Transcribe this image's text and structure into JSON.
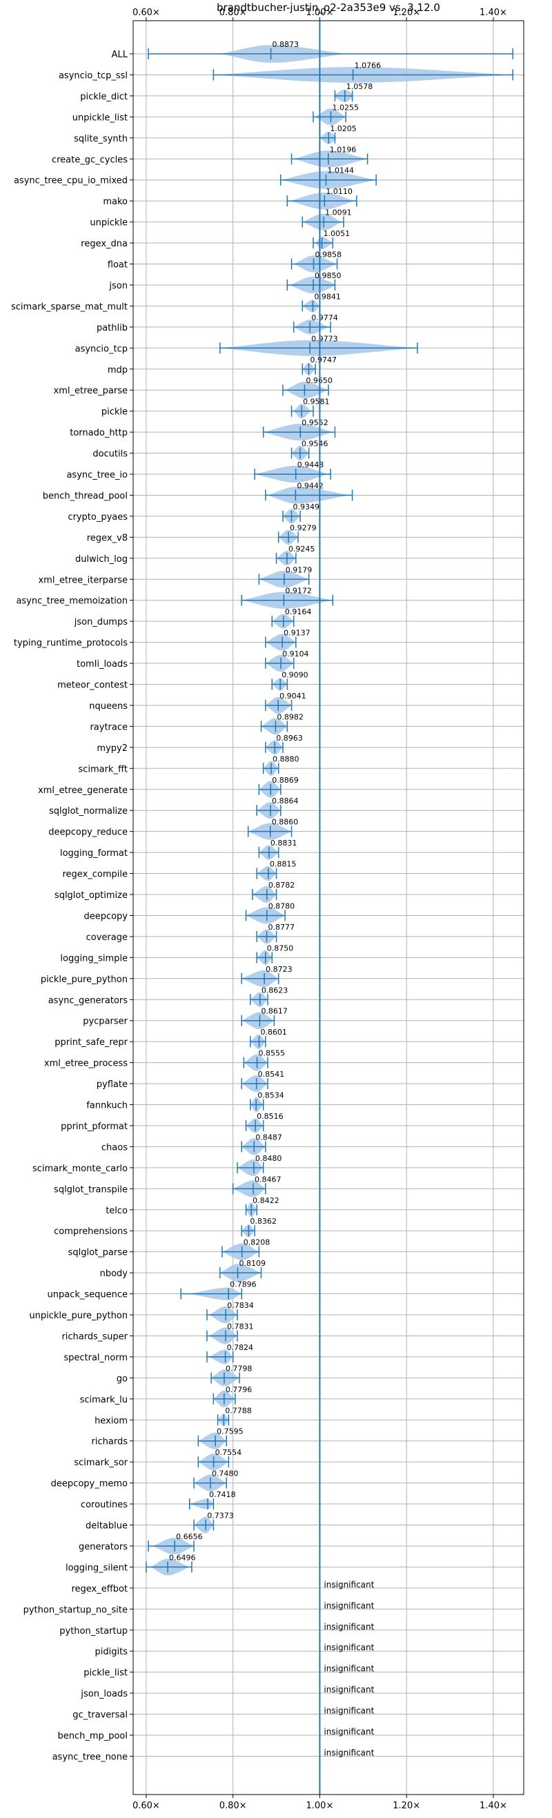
{
  "chart_data": {
    "type": "violin",
    "title": "brandtbucher-justin_o2-2a353e9 vs. 3.12.0",
    "xlim": [
      0.57,
      1.47
    ],
    "xticks": [
      0.6,
      0.8,
      1.0,
      1.2,
      1.4
    ],
    "xtick_labels": [
      "0.60×",
      "0.80×",
      "1.00×",
      "1.20×",
      "1.40×"
    ],
    "reference_line": 1.0,
    "grid": true,
    "colors": {
      "violin": "#a7c7e7",
      "errorbar": "#1f77b4",
      "grid": "#b0b0b0"
    },
    "insignificant_label": "insignificant",
    "benchmarks": [
      {
        "name": "ALL",
        "value": 0.8873,
        "label": "0.8873",
        "lo": 0.605,
        "hi": 1.445,
        "vmin": 0.77,
        "vmax": 1.06,
        "width": 0.85
      },
      {
        "name": "asyncio_tcp_ssl",
        "value": 1.0766,
        "label": "1.0766",
        "lo": 0.755,
        "hi": 1.445,
        "vmin": 0.755,
        "vmax": 1.445,
        "width": 0.75
      },
      {
        "name": "pickle_dict",
        "value": 1.0578,
        "label": "1.0578",
        "lo": 1.035,
        "hi": 1.075,
        "vmin": 1.03,
        "vmax": 1.08,
        "width": 0.6
      },
      {
        "name": "unpickle_list",
        "value": 1.0255,
        "label": "1.0255",
        "lo": 0.985,
        "hi": 1.06,
        "vmin": 0.99,
        "vmax": 1.06,
        "width": 0.8
      },
      {
        "name": "sqlite_synth",
        "value": 1.0205,
        "label": "1.0205",
        "lo": 1.0,
        "hi": 1.035,
        "vmin": 1.0,
        "vmax": 1.04,
        "width": 0.6
      },
      {
        "name": "create_gc_cycles",
        "value": 1.0196,
        "label": "1.0196",
        "lo": 0.935,
        "hi": 1.11,
        "vmin": 0.94,
        "vmax": 1.11,
        "width": 0.8
      },
      {
        "name": "async_tree_cpu_io_mixed",
        "value": 1.0144,
        "label": "1.0144",
        "lo": 0.91,
        "hi": 1.13,
        "vmin": 0.91,
        "vmax": 1.13,
        "width": 0.85
      },
      {
        "name": "mako",
        "value": 1.011,
        "label": "1.0110",
        "lo": 0.925,
        "hi": 1.085,
        "vmin": 0.93,
        "vmax": 1.08,
        "width": 0.8
      },
      {
        "name": "unpickle",
        "value": 1.0091,
        "label": "1.0091",
        "lo": 0.96,
        "hi": 1.055,
        "vmin": 0.96,
        "vmax": 1.05,
        "width": 0.8
      },
      {
        "name": "regex_dna",
        "value": 1.0051,
        "label": "1.0051",
        "lo": 0.985,
        "hi": 1.03,
        "vmin": 0.99,
        "vmax": 1.03,
        "width": 0.6
      },
      {
        "name": "float",
        "value": 0.9858,
        "label": "0.9858",
        "lo": 0.935,
        "hi": 1.04,
        "vmin": 0.94,
        "vmax": 1.04,
        "width": 0.8
      },
      {
        "name": "json",
        "value": 0.985,
        "label": "0.9850",
        "lo": 0.925,
        "hi": 1.035,
        "vmin": 0.93,
        "vmax": 1.04,
        "width": 0.8
      },
      {
        "name": "scimark_sparse_mat_mult",
        "value": 0.9841,
        "label": "0.9841",
        "lo": 0.96,
        "hi": 1.0,
        "vmin": 0.96,
        "vmax": 1.0,
        "width": 0.6
      },
      {
        "name": "pathlib",
        "value": 0.9774,
        "label": "0.9774",
        "lo": 0.94,
        "hi": 1.025,
        "vmin": 0.94,
        "vmax": 1.02,
        "width": 0.7
      },
      {
        "name": "asyncio_tcp",
        "value": 0.9773,
        "label": "0.9773",
        "lo": 0.77,
        "hi": 1.225,
        "vmin": 0.77,
        "vmax": 1.225,
        "width": 0.75
      },
      {
        "name": "mdp",
        "value": 0.9747,
        "label": "0.9747",
        "lo": 0.96,
        "hi": 0.99,
        "vmin": 0.96,
        "vmax": 0.99,
        "width": 0.6
      },
      {
        "name": "xml_etree_parse",
        "value": 0.965,
        "label": "0.9650",
        "lo": 0.915,
        "hi": 1.02,
        "vmin": 0.92,
        "vmax": 1.02,
        "width": 0.8
      },
      {
        "name": "pickle",
        "value": 0.9581,
        "label": "0.9581",
        "lo": 0.935,
        "hi": 0.985,
        "vmin": 0.94,
        "vmax": 0.98,
        "width": 0.7
      },
      {
        "name": "tornado_http",
        "value": 0.9552,
        "label": "0.9552",
        "lo": 0.87,
        "hi": 1.035,
        "vmin": 0.87,
        "vmax": 1.03,
        "width": 0.8
      },
      {
        "name": "docutils",
        "value": 0.9546,
        "label": "0.9546",
        "lo": 0.935,
        "hi": 0.975,
        "vmin": 0.935,
        "vmax": 0.975,
        "width": 0.7
      },
      {
        "name": "async_tree_io",
        "value": 0.9448,
        "label": "0.9448",
        "lo": 0.85,
        "hi": 1.025,
        "vmin": 0.85,
        "vmax": 1.02,
        "width": 0.8
      },
      {
        "name": "bench_thread_pool",
        "value": 0.9442,
        "label": "0.9442",
        "lo": 0.875,
        "hi": 1.075,
        "vmin": 0.88,
        "vmax": 1.07,
        "width": 0.8
      },
      {
        "name": "crypto_pyaes",
        "value": 0.9349,
        "label": "0.9349",
        "lo": 0.915,
        "hi": 0.955,
        "vmin": 0.915,
        "vmax": 0.955,
        "width": 0.7
      },
      {
        "name": "regex_v8",
        "value": 0.9279,
        "label": "0.9279",
        "lo": 0.905,
        "hi": 0.95,
        "vmin": 0.905,
        "vmax": 0.95,
        "width": 0.7
      },
      {
        "name": "dulwich_log",
        "value": 0.9245,
        "label": "0.9245",
        "lo": 0.9,
        "hi": 0.945,
        "vmin": 0.9,
        "vmax": 0.945,
        "width": 0.7
      },
      {
        "name": "xml_etree_iterparse",
        "value": 0.9179,
        "label": "0.9179",
        "lo": 0.86,
        "hi": 0.975,
        "vmin": 0.86,
        "vmax": 0.975,
        "width": 0.8
      },
      {
        "name": "async_tree_memoization",
        "value": 0.9172,
        "label": "0.9172",
        "lo": 0.82,
        "hi": 1.03,
        "vmin": 0.82,
        "vmax": 1.03,
        "width": 0.8
      },
      {
        "name": "json_dumps",
        "value": 0.9164,
        "label": "0.9164",
        "lo": 0.89,
        "hi": 0.94,
        "vmin": 0.89,
        "vmax": 0.94,
        "width": 0.7
      },
      {
        "name": "typing_runtime_protocols",
        "value": 0.9137,
        "label": "0.9137",
        "lo": 0.875,
        "hi": 0.945,
        "vmin": 0.875,
        "vmax": 0.945,
        "width": 0.8
      },
      {
        "name": "tomli_loads",
        "value": 0.9104,
        "label": "0.9104",
        "lo": 0.875,
        "hi": 0.94,
        "vmin": 0.875,
        "vmax": 0.94,
        "width": 0.8
      },
      {
        "name": "meteor_contest",
        "value": 0.909,
        "label": "0.9090",
        "lo": 0.89,
        "hi": 0.925,
        "vmin": 0.89,
        "vmax": 0.925,
        "width": 0.6
      },
      {
        "name": "nqueens",
        "value": 0.9041,
        "label": "0.9041",
        "lo": 0.875,
        "hi": 0.935,
        "vmin": 0.875,
        "vmax": 0.935,
        "width": 0.8
      },
      {
        "name": "raytrace",
        "value": 0.8982,
        "label": "0.8982",
        "lo": 0.865,
        "hi": 0.925,
        "vmin": 0.865,
        "vmax": 0.925,
        "width": 0.8
      },
      {
        "name": "mypy2",
        "value": 0.8963,
        "label": "0.8963",
        "lo": 0.875,
        "hi": 0.915,
        "vmin": 0.875,
        "vmax": 0.915,
        "width": 0.7
      },
      {
        "name": "scimark_fft",
        "value": 0.888,
        "label": "0.8880",
        "lo": 0.87,
        "hi": 0.905,
        "vmin": 0.87,
        "vmax": 0.905,
        "width": 0.7
      },
      {
        "name": "xml_etree_generate",
        "value": 0.8869,
        "label": "0.8869",
        "lo": 0.86,
        "hi": 0.91,
        "vmin": 0.86,
        "vmax": 0.91,
        "width": 0.8
      },
      {
        "name": "sqlglot_normalize",
        "value": 0.8864,
        "label": "0.8864",
        "lo": 0.855,
        "hi": 0.91,
        "vmin": 0.855,
        "vmax": 0.91,
        "width": 0.8
      },
      {
        "name": "deepcopy_reduce",
        "value": 0.886,
        "label": "0.8860",
        "lo": 0.835,
        "hi": 0.935,
        "vmin": 0.835,
        "vmax": 0.935,
        "width": 0.8
      },
      {
        "name": "logging_format",
        "value": 0.8831,
        "label": "0.8831",
        "lo": 0.86,
        "hi": 0.905,
        "vmin": 0.86,
        "vmax": 0.905,
        "width": 0.7
      },
      {
        "name": "regex_compile",
        "value": 0.8815,
        "label": "0.8815",
        "lo": 0.855,
        "hi": 0.9,
        "vmin": 0.855,
        "vmax": 0.9,
        "width": 0.7
      },
      {
        "name": "sqlglot_optimize",
        "value": 0.8782,
        "label": "0.8782",
        "lo": 0.845,
        "hi": 0.9,
        "vmin": 0.845,
        "vmax": 0.9,
        "width": 0.8
      },
      {
        "name": "deepcopy",
        "value": 0.878,
        "label": "0.8780",
        "lo": 0.83,
        "hi": 0.92,
        "vmin": 0.83,
        "vmax": 0.92,
        "width": 0.8
      },
      {
        "name": "coverage",
        "value": 0.8777,
        "label": "0.8777",
        "lo": 0.855,
        "hi": 0.9,
        "vmin": 0.855,
        "vmax": 0.9,
        "width": 0.7
      },
      {
        "name": "logging_simple",
        "value": 0.875,
        "label": "0.8750",
        "lo": 0.855,
        "hi": 0.89,
        "vmin": 0.855,
        "vmax": 0.89,
        "width": 0.7
      },
      {
        "name": "pickle_pure_python",
        "value": 0.8723,
        "label": "0.8723",
        "lo": 0.82,
        "hi": 0.905,
        "vmin": 0.82,
        "vmax": 0.905,
        "width": 0.8
      },
      {
        "name": "async_generators",
        "value": 0.8623,
        "label": "0.8623",
        "lo": 0.84,
        "hi": 0.88,
        "vmin": 0.84,
        "vmax": 0.88,
        "width": 0.7
      },
      {
        "name": "pycparser",
        "value": 0.8617,
        "label": "0.8617",
        "lo": 0.82,
        "hi": 0.895,
        "vmin": 0.82,
        "vmax": 0.895,
        "width": 0.8
      },
      {
        "name": "pprint_safe_repr",
        "value": 0.8601,
        "label": "0.8601",
        "lo": 0.84,
        "hi": 0.875,
        "vmin": 0.84,
        "vmax": 0.875,
        "width": 0.7
      },
      {
        "name": "xml_etree_process",
        "value": 0.8555,
        "label": "0.8555",
        "lo": 0.825,
        "hi": 0.88,
        "vmin": 0.825,
        "vmax": 0.88,
        "width": 0.8
      },
      {
        "name": "pyflate",
        "value": 0.8541,
        "label": "0.8541",
        "lo": 0.82,
        "hi": 0.88,
        "vmin": 0.82,
        "vmax": 0.88,
        "width": 0.8
      },
      {
        "name": "fannkuch",
        "value": 0.8534,
        "label": "0.8534",
        "lo": 0.84,
        "hi": 0.87,
        "vmin": 0.84,
        "vmax": 0.87,
        "width": 0.7
      },
      {
        "name": "pprint_pformat",
        "value": 0.8516,
        "label": "0.8516",
        "lo": 0.83,
        "hi": 0.87,
        "vmin": 0.83,
        "vmax": 0.87,
        "width": 0.7
      },
      {
        "name": "chaos",
        "value": 0.8487,
        "label": "0.8487",
        "lo": 0.82,
        "hi": 0.875,
        "vmin": 0.82,
        "vmax": 0.875,
        "width": 0.8
      },
      {
        "name": "scimark_monte_carlo",
        "value": 0.848,
        "label": "0.8480",
        "lo": 0.81,
        "hi": 0.87,
        "vmin": 0.81,
        "vmax": 0.87,
        "width": 0.8
      },
      {
        "name": "sqlglot_transpile",
        "value": 0.8467,
        "label": "0.8467",
        "lo": 0.8,
        "hi": 0.875,
        "vmin": 0.8,
        "vmax": 0.875,
        "width": 0.8
      },
      {
        "name": "telco",
        "value": 0.8422,
        "label": "0.8422",
        "lo": 0.83,
        "hi": 0.855,
        "vmin": 0.83,
        "vmax": 0.855,
        "width": 0.7
      },
      {
        "name": "comprehensions",
        "value": 0.8362,
        "label": "0.8362",
        "lo": 0.82,
        "hi": 0.85,
        "vmin": 0.82,
        "vmax": 0.85,
        "width": 0.6
      },
      {
        "name": "sqlglot_parse",
        "value": 0.8208,
        "label": "0.8208",
        "lo": 0.775,
        "hi": 0.86,
        "vmin": 0.775,
        "vmax": 0.86,
        "width": 0.8
      },
      {
        "name": "nbody",
        "value": 0.8109,
        "label": "0.8109",
        "lo": 0.77,
        "hi": 0.865,
        "vmin": 0.77,
        "vmax": 0.865,
        "width": 0.85
      },
      {
        "name": "unpack_sequence",
        "value": 0.7896,
        "label": "0.7896",
        "lo": 0.68,
        "hi": 0.82,
        "vmin": 0.7,
        "vmax": 0.82,
        "width": 0.6
      },
      {
        "name": "unpickle_pure_python",
        "value": 0.7834,
        "label": "0.7834",
        "lo": 0.74,
        "hi": 0.81,
        "vmin": 0.745,
        "vmax": 0.81,
        "width": 0.8
      },
      {
        "name": "richards_super",
        "value": 0.7831,
        "label": "0.7831",
        "lo": 0.74,
        "hi": 0.81,
        "vmin": 0.745,
        "vmax": 0.81,
        "width": 0.8
      },
      {
        "name": "spectral_norm",
        "value": 0.7824,
        "label": "0.7824",
        "lo": 0.74,
        "hi": 0.8,
        "vmin": 0.745,
        "vmax": 0.8,
        "width": 0.7
      },
      {
        "name": "go",
        "value": 0.7798,
        "label": "0.7798",
        "lo": 0.75,
        "hi": 0.815,
        "vmin": 0.75,
        "vmax": 0.815,
        "width": 0.8
      },
      {
        "name": "scimark_lu",
        "value": 0.7796,
        "label": "0.7796",
        "lo": 0.755,
        "hi": 0.805,
        "vmin": 0.755,
        "vmax": 0.805,
        "width": 0.8
      },
      {
        "name": "hexiom",
        "value": 0.7788,
        "label": "0.7788",
        "lo": 0.765,
        "hi": 0.79,
        "vmin": 0.765,
        "vmax": 0.79,
        "width": 0.6
      },
      {
        "name": "richards",
        "value": 0.7595,
        "label": "0.7595",
        "lo": 0.72,
        "hi": 0.785,
        "vmin": 0.72,
        "vmax": 0.785,
        "width": 0.8
      },
      {
        "name": "scimark_sor",
        "value": 0.7554,
        "label": "0.7554",
        "lo": 0.72,
        "hi": 0.79,
        "vmin": 0.72,
        "vmax": 0.79,
        "width": 0.8
      },
      {
        "name": "deepcopy_memo",
        "value": 0.748,
        "label": "0.7480",
        "lo": 0.71,
        "hi": 0.785,
        "vmin": 0.71,
        "vmax": 0.785,
        "width": 0.8
      },
      {
        "name": "coroutines",
        "value": 0.7418,
        "label": "0.7418",
        "lo": 0.7,
        "hi": 0.755,
        "vmin": 0.7,
        "vmax": 0.755,
        "width": 0.5
      },
      {
        "name": "deltablue",
        "value": 0.7373,
        "label": "0.7373",
        "lo": 0.71,
        "hi": 0.755,
        "vmin": 0.71,
        "vmax": 0.755,
        "width": 0.8
      },
      {
        "name": "generators",
        "value": 0.6656,
        "label": "0.6656",
        "lo": 0.605,
        "hi": 0.71,
        "vmin": 0.615,
        "vmax": 0.71,
        "width": 0.8
      },
      {
        "name": "logging_silent",
        "value": 0.6496,
        "label": "0.6496",
        "lo": 0.6,
        "hi": 0.705,
        "vmin": 0.61,
        "vmax": 0.7,
        "width": 0.8
      },
      {
        "name": "regex_effbot",
        "insignificant": true
      },
      {
        "name": "python_startup_no_site",
        "insignificant": true
      },
      {
        "name": "python_startup",
        "insignificant": true
      },
      {
        "name": "pidigits",
        "insignificant": true
      },
      {
        "name": "pickle_list",
        "insignificant": true
      },
      {
        "name": "json_loads",
        "insignificant": true
      },
      {
        "name": "gc_traversal",
        "insignificant": true
      },
      {
        "name": "bench_mp_pool",
        "insignificant": true
      },
      {
        "name": "async_tree_none",
        "insignificant": true
      }
    ]
  }
}
